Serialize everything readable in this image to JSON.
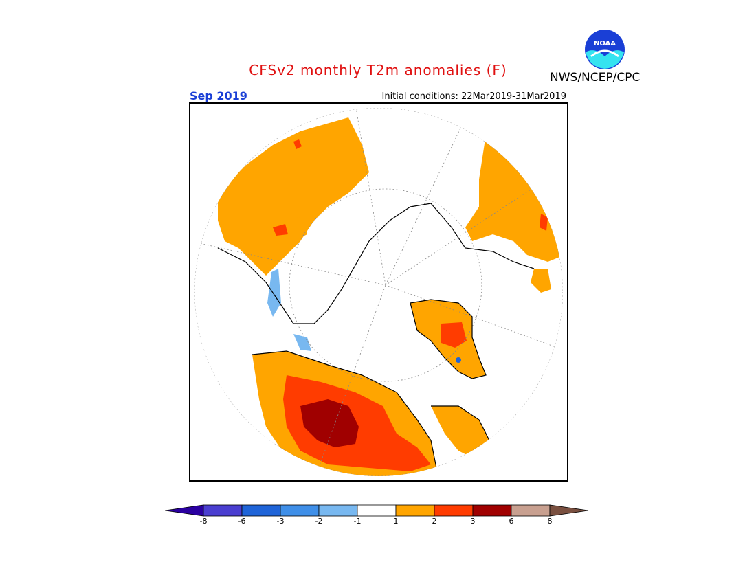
{
  "header": {
    "title": "CFSv2 monthly T2m anomalies (F)",
    "agency": "NWS/NCEP/CPC",
    "logo_text": "NOAA",
    "month": "Sep 2019",
    "initial_conditions": "Initial conditions: 22Mar2019-31Mar2019"
  },
  "map": {
    "projection": "north polar stereographic",
    "variable": "T2m anomalies (F)"
  },
  "colorbar": {
    "colors": [
      "#2a00a0",
      "#4a3ed0",
      "#1f64d8",
      "#3f8fe8",
      "#78b8f0",
      "#ffffff",
      "#ffa500",
      "#ff3c00",
      "#a00000",
      "#c8a090",
      "#7a5040"
    ],
    "tick_labels": [
      "-8",
      "-6",
      "-3",
      "-2",
      "-1",
      "1",
      "2",
      "3",
      "6",
      "8"
    ]
  }
}
